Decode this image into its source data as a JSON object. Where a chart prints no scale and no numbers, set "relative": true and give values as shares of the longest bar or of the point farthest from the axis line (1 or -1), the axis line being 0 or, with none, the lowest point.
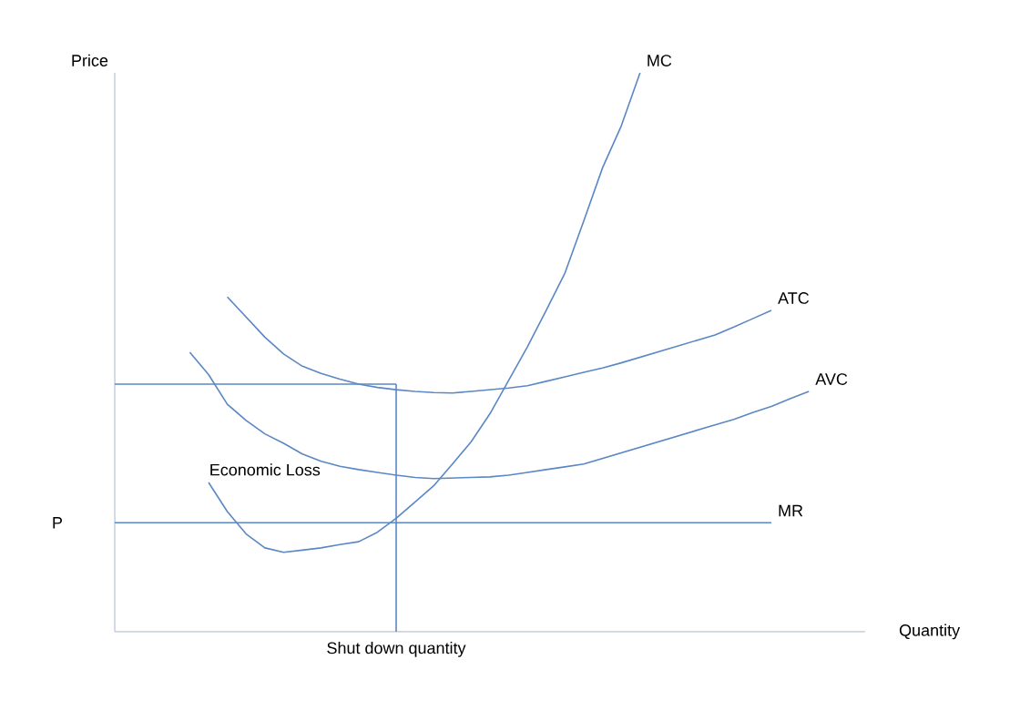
{
  "chart_data": {
    "type": "line",
    "relative": true,
    "xlabel": "Quantity",
    "ylabel": "Price",
    "categories": [
      null,
      null,
      null,
      null,
      null,
      null,
      null,
      null,
      null,
      null,
      null,
      null,
      null,
      null,
      null,
      null,
      null,
      null,
      null,
      null,
      null,
      null,
      null,
      null,
      null,
      null,
      null,
      null,
      null,
      null,
      null,
      null,
      null,
      null,
      null,
      null,
      null,
      null,
      null,
      null,
      null
    ],
    "series": [
      {
        "name": "MC",
        "color": "#5b87c5",
        "values": [
          null,
          null,
          null,
          null,
          null,
          0.267,
          0.215,
          0.175,
          0.15,
          0.142,
          0.146,
          0.15,
          0.156,
          0.161,
          0.178,
          0.203,
          0.232,
          0.261,
          0.3,
          0.34,
          0.39,
          0.45,
          0.51,
          0.575,
          0.642,
          0.735,
          0.83,
          0.905,
          1.0,
          null,
          null,
          null,
          null,
          null,
          null,
          null,
          null,
          null,
          null,
          null,
          null
        ]
      },
      {
        "name": "ATC",
        "color": "#5b87c5",
        "values": [
          null,
          null,
          null,
          null,
          null,
          null,
          0.599,
          0.563,
          0.527,
          0.497,
          0.475,
          0.462,
          0.452,
          0.443,
          0.437,
          0.433,
          0.43,
          0.428,
          0.427,
          0.43,
          0.433,
          0.436,
          0.44,
          0.448,
          0.456,
          0.464,
          0.472,
          0.481,
          0.491,
          0.501,
          0.511,
          0.521,
          0.531,
          0.545,
          0.56,
          0.575,
          null,
          null,
          null,
          null,
          null
        ]
      },
      {
        "name": "AVC",
        "color": "#5b87c5",
        "values": [
          null,
          null,
          null,
          null,
          0.5,
          0.46,
          0.407,
          0.378,
          0.354,
          0.337,
          0.318,
          0.305,
          0.296,
          0.29,
          0.285,
          0.28,
          0.276,
          0.274,
          0.275,
          0.276,
          0.277,
          0.28,
          0.285,
          0.29,
          0.295,
          0.3,
          0.31,
          0.32,
          0.33,
          0.34,
          0.35,
          0.36,
          0.37,
          0.38,
          0.392,
          0.403,
          0.417,
          0.43,
          null,
          null,
          null
        ]
      },
      {
        "name": "MR",
        "color": "#5b87c5",
        "values": [
          0.195,
          0.195,
          0.195,
          0.195,
          0.195,
          0.195,
          0.195,
          0.195,
          0.195,
          0.195,
          0.195,
          0.195,
          0.195,
          0.195,
          0.195,
          0.195,
          0.195,
          0.195,
          0.195,
          0.195,
          0.195,
          0.195,
          0.195,
          0.195,
          0.195,
          0.195,
          0.195,
          0.195,
          0.195,
          0.195,
          0.195,
          0.195,
          0.195,
          0.195,
          0.195,
          0.195,
          null,
          null,
          null,
          null,
          null
        ]
      },
      {
        "color": "#5b87c5",
        "values": [
          0.443,
          0.443,
          0.443,
          0.443,
          0.443,
          0.443,
          0.443,
          0.443,
          0.443,
          0.443,
          0.443,
          0.443,
          0.443,
          0.443,
          0.443,
          0.443,
          null,
          null,
          null,
          null,
          null,
          null,
          null,
          null,
          null,
          null,
          null,
          null,
          null,
          null,
          null,
          null,
          null,
          null,
          null,
          null,
          null,
          null,
          null,
          null,
          null
        ]
      }
    ],
    "annotations": [
      "P",
      "Shut down quantity",
      "Economic Loss"
    ]
  }
}
